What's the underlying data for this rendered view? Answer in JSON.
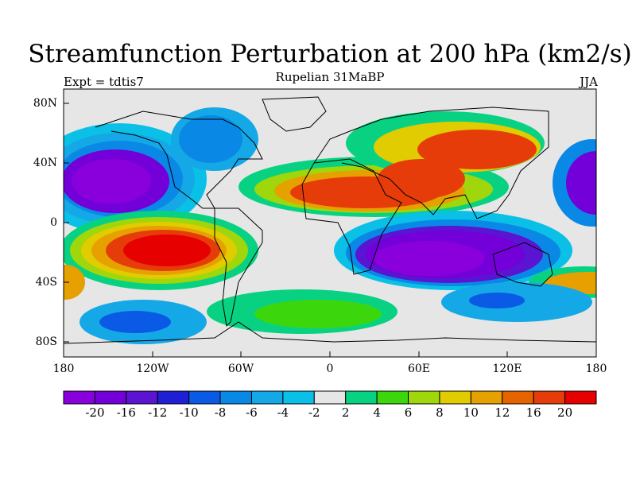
{
  "title": "Streamfunction Perturbation at 200 hPa (km2/s)",
  "subtitle": "Rupelian  31MaBP",
  "left_label": "Expt = tdtis7",
  "right_label": "JJA",
  "y_ticks": [
    "80N",
    "40N",
    "0",
    "40S",
    "80S"
  ],
  "x_ticks": [
    "180",
    "120W",
    "60W",
    "0",
    "60E",
    "120E",
    "180"
  ],
  "colorbar": {
    "labels": [
      "-20",
      "-16",
      "-12",
      "-10",
      "-8",
      "-6",
      "-4",
      "-2",
      "2",
      "4",
      "6",
      "8",
      "10",
      "12",
      "16",
      "20"
    ],
    "colors": [
      "#8a00dc",
      "#7300d8",
      "#5a14d2",
      "#1f1fd6",
      "#0a5ae6",
      "#0a88e6",
      "#14a8e6",
      "#0ac0e6",
      "#e6e6e6",
      "#08d282",
      "#3cd60c",
      "#a0d60c",
      "#e0cc00",
      "#e6a000",
      "#e66400",
      "#e63c0a",
      "#e60000"
    ]
  },
  "colors": {
    "land_outline": "#000000",
    "neutral_fill": "#e6e6e6"
  }
}
